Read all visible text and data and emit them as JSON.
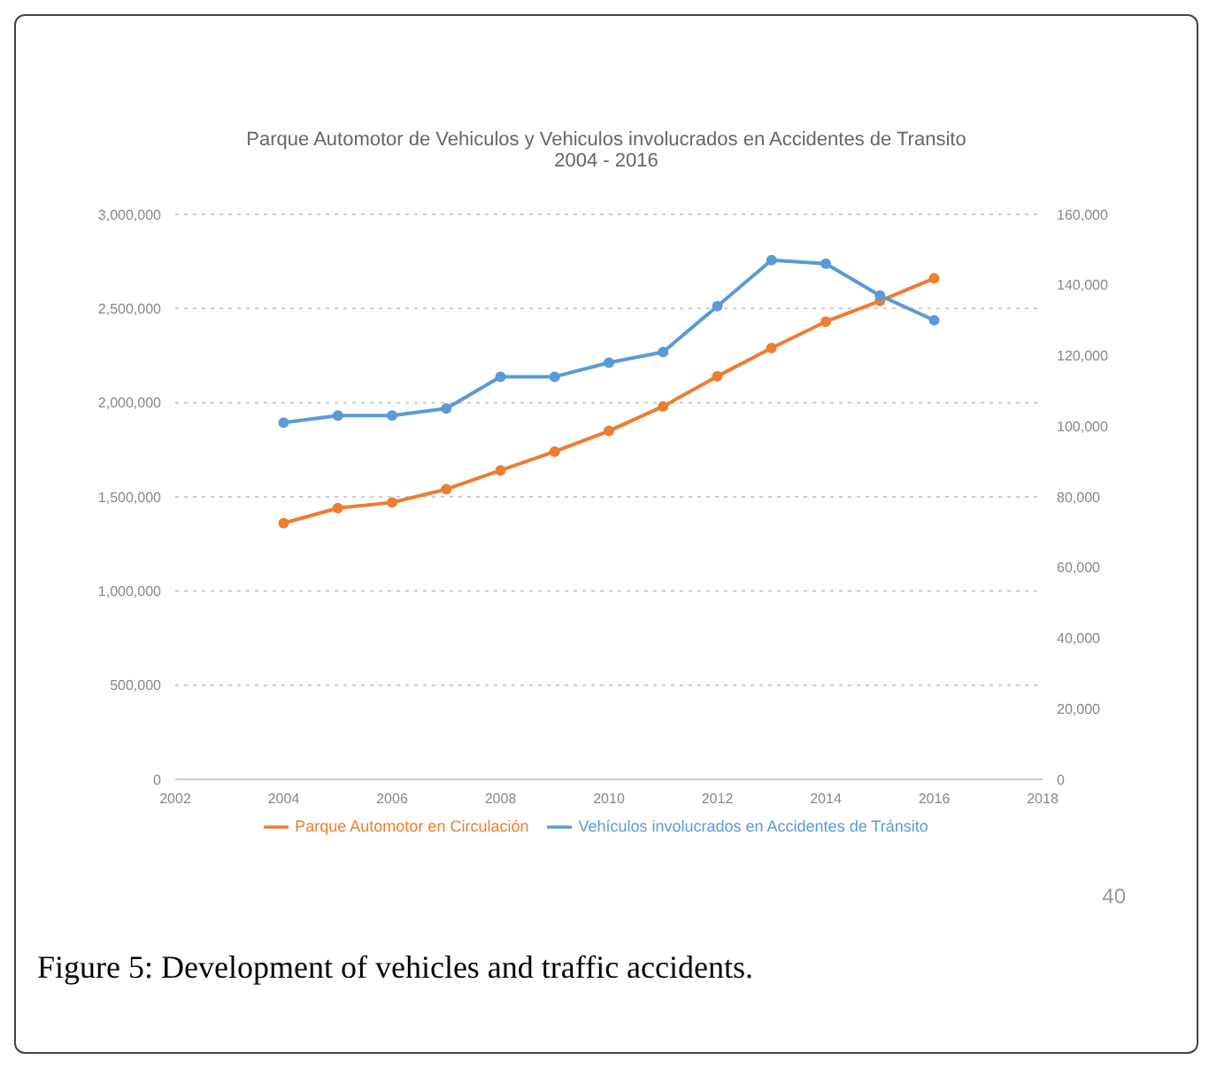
{
  "chart_data": {
    "type": "line",
    "title": "Parque Automotor de Vehiculos y Vehiculos involucrados en Accidentes de Transito",
    "subtitle": "2004 - 2016",
    "x": [
      2004,
      2005,
      2006,
      2007,
      2008,
      2009,
      2010,
      2011,
      2012,
      2013,
      2014,
      2015,
      2016
    ],
    "series": [
      {
        "name": "Parque Automotor en Circulación",
        "color": "#ed7d31",
        "values": [
          1360000,
          1440000,
          1470000,
          1540000,
          1640000,
          1740000,
          1850000,
          1980000,
          2140000,
          2290000,
          2430000,
          2540000,
          2660000
        ]
      },
      {
        "name": "Vehículos involucrados en Accidentes de Tránsito",
        "color": "#5b9bd5",
        "axis": "y2",
        "values": [
          101000,
          103000,
          103000,
          105000,
          114000,
          114000,
          118000,
          121000,
          134000,
          147000,
          146000,
          137000,
          130000
        ]
      }
    ],
    "xlim": [
      2002,
      2018
    ],
    "xticks": [
      2002,
      2004,
      2006,
      2008,
      2010,
      2012,
      2014,
      2016,
      2018
    ],
    "ylim": [
      0,
      3000000
    ],
    "yticks": [
      {
        "value": 0,
        "label": "0"
      },
      {
        "value": 500000,
        "label": "500,000"
      },
      {
        "value": 1000000,
        "label": "1,000,000"
      },
      {
        "value": 1500000,
        "label": "1,500,000"
      },
      {
        "value": 2000000,
        "label": "2,000,000"
      },
      {
        "value": 2500000,
        "label": "2,500,000"
      },
      {
        "value": 3000000,
        "label": "3,000,000"
      }
    ],
    "y2lim": [
      0,
      160000
    ],
    "y2ticks": [
      {
        "value": 0,
        "label": "0"
      },
      {
        "value": 20000,
        "label": "20,000"
      },
      {
        "value": 40000,
        "label": "40,000"
      },
      {
        "value": 60000,
        "label": "60,000"
      },
      {
        "value": 80000,
        "label": "80,000"
      },
      {
        "value": 100000,
        "label": "100,000"
      },
      {
        "value": 120000,
        "label": "120,000"
      },
      {
        "value": 140000,
        "label": "140,000"
      },
      {
        "value": 160000,
        "label": "160,000"
      }
    ],
    "grid": "y",
    "legend": "bottom",
    "marker": "circle",
    "line_style": "solid",
    "annotations": [
      "40",
      "Figure 5: Development of vehicles and traffic accidents."
    ]
  }
}
